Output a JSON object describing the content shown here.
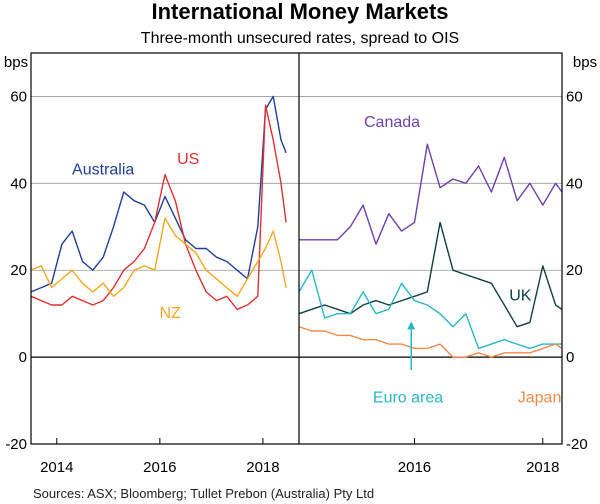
{
  "chart_data": {
    "type": "line",
    "title": "International Money Markets",
    "subtitle": "Three-month unsecured rates, spread to OIS",
    "unit_left": "bps",
    "unit_right": "bps",
    "source": "Sources: ASX; Bloomberg; Tullet Prebon (Australia) Pty Ltd",
    "ylim": [
      -20,
      70
    ],
    "yticks": [
      -20,
      0,
      20,
      40,
      60
    ],
    "grid": true,
    "panels": [
      {
        "xlim": [
          2013.5,
          2018.7
        ],
        "xticks": [
          {
            "label": "2014",
            "x": 2014.0
          },
          {
            "label": "2016",
            "x": 2016.0
          },
          {
            "label": "2018",
            "x": 2018.0
          }
        ],
        "series": [
          {
            "name": "Australia",
            "color": "#1f3f9a",
            "x": [
              2013.5,
              2013.7,
              2013.9,
              2014.1,
              2014.3,
              2014.5,
              2014.7,
              2014.9,
              2015.1,
              2015.3,
              2015.5,
              2015.7,
              2015.9,
              2016.1,
              2016.3,
              2016.5,
              2016.7,
              2016.9,
              2017.1,
              2017.3,
              2017.5,
              2017.7,
              2017.9,
              2018.05,
              2018.2,
              2018.35,
              2018.45
            ],
            "values": [
              15,
              16,
              17,
              26,
              29,
              22,
              20,
              23,
              30,
              38,
              36,
              35,
              31,
              37,
              32,
              27,
              25,
              25,
              23,
              22,
              20,
              18,
              30,
              57,
              60,
              50,
              47
            ]
          },
          {
            "name": "US",
            "color": "#e03030",
            "x": [
              2013.5,
              2013.7,
              2013.9,
              2014.1,
              2014.3,
              2014.5,
              2014.7,
              2014.9,
              2015.1,
              2015.3,
              2015.5,
              2015.7,
              2015.9,
              2016.1,
              2016.3,
              2016.5,
              2016.7,
              2016.9,
              2017.1,
              2017.3,
              2017.5,
              2017.7,
              2017.9,
              2018.05,
              2018.2,
              2018.35,
              2018.45
            ],
            "values": [
              14,
              13,
              12,
              12,
              14,
              13,
              12,
              13,
              16,
              20,
              22,
              25,
              31,
              42,
              36,
              26,
              20,
              15,
              13,
              14,
              11,
              12,
              14,
              58,
              50,
              40,
              31
            ]
          },
          {
            "name": "NZ",
            "color": "#f5a623",
            "x": [
              2013.5,
              2013.7,
              2013.9,
              2014.1,
              2014.3,
              2014.5,
              2014.7,
              2014.9,
              2015.1,
              2015.3,
              2015.5,
              2015.7,
              2015.9,
              2016.1,
              2016.3,
              2016.5,
              2016.7,
              2016.9,
              2017.1,
              2017.3,
              2017.5,
              2017.7,
              2017.9,
              2018.05,
              2018.2,
              2018.35,
              2018.45
            ],
            "values": [
              20,
              21,
              16,
              18,
              20,
              17,
              15,
              17,
              14,
              16,
              20,
              21,
              20,
              32,
              28,
              26,
              24,
              20,
              18,
              16,
              14,
              18,
              22,
              25,
              29,
              22,
              16
            ]
          }
        ],
        "annotations": [
          {
            "text": "Australia",
            "color": "#1f3f9a",
            "x": 2014.9,
            "y": 42
          },
          {
            "text": "US",
            "color": "#e03030",
            "x": 2016.55,
            "y": 44.5
          },
          {
            "text": "NZ",
            "color": "#f5a623",
            "x": 2016.2,
            "y": 9
          }
        ]
      },
      {
        "xlim": [
          2014.2,
          2018.3
        ],
        "xticks": [
          {
            "label": "2016",
            "x": 2016.0
          },
          {
            "label": "2018",
            "x": 2018.0
          }
        ],
        "series": [
          {
            "name": "Canada",
            "color": "#6f3fb0",
            "x": [
              2014.2,
              2014.4,
              2014.6,
              2014.8,
              2015.0,
              2015.2,
              2015.4,
              2015.6,
              2015.8,
              2016.0,
              2016.2,
              2016.4,
              2016.6,
              2016.8,
              2017.0,
              2017.2,
              2017.4,
              2017.6,
              2017.8,
              2018.0,
              2018.2,
              2018.3
            ],
            "values": [
              27,
              27,
              27,
              27,
              30,
              35,
              26,
              33,
              29,
              31,
              49,
              39,
              41,
              40,
              44,
              38,
              46,
              36,
              40,
              35,
              40,
              38
            ]
          },
          {
            "name": "UK",
            "color": "#123f3f",
            "x": [
              2014.2,
              2014.4,
              2014.6,
              2014.8,
              2015.0,
              2015.2,
              2015.4,
              2015.6,
              2015.8,
              2016.0,
              2016.2,
              2016.4,
              2016.6,
              2016.8,
              2017.0,
              2017.2,
              2017.4,
              2017.6,
              2017.8,
              2018.0,
              2018.2,
              2018.3
            ],
            "values": [
              10,
              11,
              12,
              11,
              10,
              12,
              13,
              12,
              13,
              14,
              15,
              31,
              20,
              19,
              18,
              17,
              12,
              7,
              8,
              21,
              12,
              11
            ]
          },
          {
            "name": "Euro area",
            "color": "#29b6c9",
            "x": [
              2014.2,
              2014.4,
              2014.6,
              2014.8,
              2015.0,
              2015.2,
              2015.4,
              2015.6,
              2015.8,
              2016.0,
              2016.2,
              2016.4,
              2016.6,
              2016.8,
              2017.0,
              2017.2,
              2017.4,
              2017.6,
              2017.8,
              2018.0,
              2018.2,
              2018.3
            ],
            "values": [
              15,
              20,
              9,
              10,
              10,
              15,
              10,
              11,
              17,
              13,
              12,
              10,
              7,
              10,
              2,
              3,
              4,
              3,
              2,
              3,
              3,
              3
            ]
          },
          {
            "name": "Japan",
            "color": "#f08a4b",
            "x": [
              2014.2,
              2014.4,
              2014.6,
              2014.8,
              2015.0,
              2015.2,
              2015.4,
              2015.6,
              2015.8,
              2016.0,
              2016.2,
              2016.4,
              2016.6,
              2016.8,
              2017.0,
              2017.2,
              2017.4,
              2017.6,
              2017.8,
              2018.0,
              2018.2,
              2018.3
            ],
            "values": [
              7,
              6,
              6,
              5,
              5,
              4,
              4,
              3,
              3,
              2,
              2,
              3,
              0,
              0,
              1,
              0,
              1,
              1,
              1,
              2,
              3,
              2
            ]
          }
        ],
        "annotations": [
          {
            "text": "Canada",
            "color": "#6f3fb0",
            "x": 2015.65,
            "y": 53
          },
          {
            "text": "UK",
            "color": "#123f3f",
            "x": 2017.65,
            "y": 13
          },
          {
            "text": "Euro area",
            "color": "#29b6c9",
            "x": 2015.9,
            "y": -10.5
          },
          {
            "text": "Japan",
            "color": "#f08a4b",
            "x": 2017.95,
            "y": -10.5
          }
        ],
        "arrow": {
          "color": "#29b6c9",
          "x": 2015.95,
          "y_from": -3,
          "y_to": 8
        }
      }
    ]
  }
}
